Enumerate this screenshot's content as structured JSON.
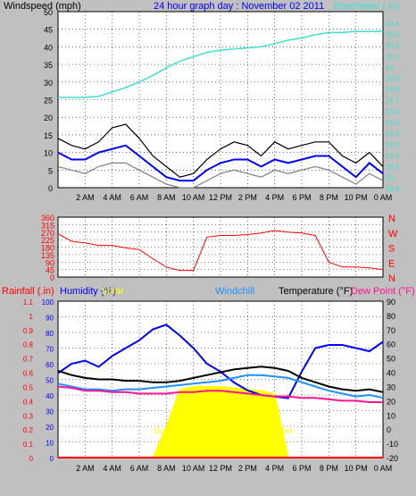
{
  "header": {
    "left_title": "Windspeed (mph)",
    "center_title": "24 hour graph day : November 02 2011",
    "right_title": "Barometer (.in)"
  },
  "colors": {
    "background": "#c0c0c0",
    "plot_bg": "#ffffff",
    "wind_high": "#000000",
    "wind_avg": "#0000ff",
    "wind_low": "#7f7f7f",
    "barometer": "#40e0d0",
    "direction": "#ff0000",
    "humidity": "#0000ff",
    "solar": "#ffff00",
    "windchill": "#1e90ff",
    "temperature": "#000000",
    "dewpoint": "#ff1493",
    "rainfall": "#ff0000",
    "sun_label": "#ffff00"
  },
  "x_ticks": [
    "2 AM",
    "4 AM",
    "6 AM",
    "8 AM",
    "10 AM",
    "12 PM",
    "2 PM",
    "4 PM",
    "6 PM",
    "8 PM",
    "10 PM",
    "0 AM"
  ],
  "chart_data": [
    {
      "type": "line",
      "x": [
        0,
        1,
        2,
        3,
        4,
        5,
        6,
        7,
        8,
        9,
        10,
        11,
        12,
        13,
        14,
        15,
        16,
        17,
        18,
        19,
        20,
        21,
        22,
        23,
        24
      ],
      "series": [
        {
          "name": "Windspeed (mph)",
          "role": "high",
          "values": [
            14,
            12,
            11,
            13,
            17,
            18,
            14,
            9,
            6,
            3,
            4,
            8,
            11,
            13,
            12,
            9,
            13,
            11,
            12,
            13,
            13,
            9,
            7,
            10,
            6
          ]
        },
        {
          "name": "Windspeed (mph)",
          "role": "average",
          "values": [
            10,
            8,
            8,
            10,
            11,
            12,
            9,
            6,
            3,
            2,
            2,
            5,
            7,
            8,
            8,
            6,
            8,
            7,
            8,
            9,
            9,
            6,
            3,
            7,
            4
          ]
        },
        {
          "name": "Windspeed (mph)",
          "role": "low",
          "values": [
            6,
            5,
            4,
            6,
            7,
            7,
            5,
            3,
            1,
            0,
            0,
            2,
            4,
            5,
            4,
            3,
            5,
            4,
            5,
            6,
            5,
            3,
            1,
            4,
            2
          ]
        },
        {
          "name": "Barometer (.in)",
          "axis": "right",
          "values": [
            29.72,
            29.72,
            29.72,
            29.73,
            29.77,
            29.81,
            29.86,
            29.92,
            29.99,
            30.05,
            30.09,
            30.13,
            30.15,
            30.16,
            30.17,
            30.18,
            30.21,
            30.24,
            30.26,
            30.29,
            30.31,
            30.31,
            30.32,
            30.32,
            30.32
          ]
        }
      ],
      "title": "24 hour graph day : November 02 2011",
      "ylabel": "Windspeed (mph)",
      "ylim": [
        0,
        50
      ],
      "y2label": "Barometer (.in)",
      "y2lim": [
        28.9,
        30.5
      ],
      "y_ticks": [
        "0",
        "5",
        "10",
        "15",
        "20",
        "25",
        "30",
        "35",
        "40",
        "45",
        "50"
      ],
      "y2_ticks": [
        "28.9",
        "29",
        "29.1",
        "29.2",
        "29.3",
        "29.4",
        "29.5",
        "29.6",
        "29.7",
        "29.8",
        "29.9",
        "30",
        "30.1",
        "30.2",
        "30.3",
        "30.4"
      ],
      "grid": true
    },
    {
      "type": "scatter",
      "x": [
        0,
        1,
        2,
        3,
        4,
        5,
        6,
        7,
        8,
        9,
        10,
        11,
        12,
        13,
        14,
        15,
        16,
        17,
        18,
        19,
        20,
        21,
        22,
        23,
        24
      ],
      "series": [
        {
          "name": "Wind direction",
          "values": [
            260,
            215,
            205,
            190,
            190,
            175,
            165,
            110,
            60,
            40,
            40,
            240,
            250,
            250,
            255,
            265,
            280,
            270,
            265,
            250,
            90,
            60,
            60,
            55,
            45
          ]
        }
      ],
      "ylim": [
        0,
        360
      ],
      "y_ticks": [
        "0",
        "45",
        "90",
        "135",
        "180",
        "225",
        "270",
        "315",
        "360"
      ],
      "compass_labels": [
        "N",
        "W",
        "S",
        "E",
        "N"
      ],
      "grid": true
    },
    {
      "type": "line",
      "x": [
        0,
        1,
        2,
        3,
        4,
        5,
        6,
        7,
        8,
        9,
        10,
        11,
        12,
        13,
        14,
        15,
        16,
        17,
        18,
        19,
        20,
        21,
        22,
        23,
        24
      ],
      "series": [
        {
          "name": "Humidity (%)",
          "axis": "left",
          "values": [
            54,
            60,
            62,
            58,
            65,
            70,
            75,
            82,
            85,
            78,
            70,
            60,
            55,
            48,
            43,
            40,
            39,
            38,
            55,
            70,
            72,
            72,
            70,
            68,
            74
          ]
        },
        {
          "name": "Solar",
          "axis": "right",
          "values": [
            0,
            0,
            0,
            0,
            0,
            0,
            0,
            0,
            22,
            48,
            50,
            50,
            50,
            49,
            48,
            47,
            45,
            0,
            0,
            0,
            0,
            0,
            0,
            0,
            0
          ]
        },
        {
          "name": "Windchill",
          "axis": "right",
          "values": [
            32,
            30,
            28,
            28,
            27,
            28,
            28,
            29,
            30,
            31,
            32,
            33,
            34,
            36,
            38,
            38,
            37,
            36,
            33,
            30,
            27,
            25,
            23,
            24,
            22
          ]
        },
        {
          "name": "Temperature (°F)",
          "axis": "right",
          "values": [
            41,
            38,
            36,
            35,
            35,
            34,
            34,
            33,
            33,
            34,
            36,
            38,
            40,
            42,
            43,
            44,
            43,
            41,
            36,
            33,
            30,
            28,
            27,
            28,
            26
          ]
        },
        {
          "name": "Dew Point (°F)",
          "axis": "right",
          "values": [
            30,
            29,
            27,
            27,
            26,
            26,
            25,
            25,
            25,
            26,
            26,
            27,
            27,
            26,
            25,
            24,
            23,
            23,
            22,
            22,
            21,
            20,
            20,
            19,
            19
          ]
        },
        {
          "name": "Rainfall (.in)",
          "axis": "left2",
          "values": [
            0,
            0,
            0,
            0,
            0,
            0,
            0,
            0,
            0,
            0,
            0,
            0,
            0,
            0,
            0,
            0,
            0,
            0,
            0,
            0,
            0,
            0,
            0,
            0,
            0
          ]
        }
      ],
      "labels": {
        "rainfall": "Rainfall (.in)",
        "humidity": "Humidity (%)",
        "solar": "Solar",
        "windchill": "Windchill",
        "temperature": "Temperature (°F)",
        "dewpoint": "Dew Point (°F)",
        "sunrise": "Sun R",
        "sunset": "Set"
      },
      "rain_ticks": [
        "0",
        "0.1",
        "0.2",
        "0.3",
        "0.4",
        "0.5",
        "0.6",
        "0.7",
        "0.8",
        "0.9",
        "1",
        "1.1"
      ],
      "humidity_ticks": [
        "0",
        "10",
        "20",
        "30",
        "40",
        "50",
        "60",
        "70",
        "80",
        "90",
        "100"
      ],
      "temp_ticks": [
        "-20",
        "-10",
        "0",
        "10",
        "20",
        "30",
        "40",
        "50",
        "60",
        "70",
        "80",
        "90"
      ],
      "ylim": [
        0,
        100
      ],
      "y2lim": [
        -20,
        90
      ],
      "grid": true
    }
  ]
}
